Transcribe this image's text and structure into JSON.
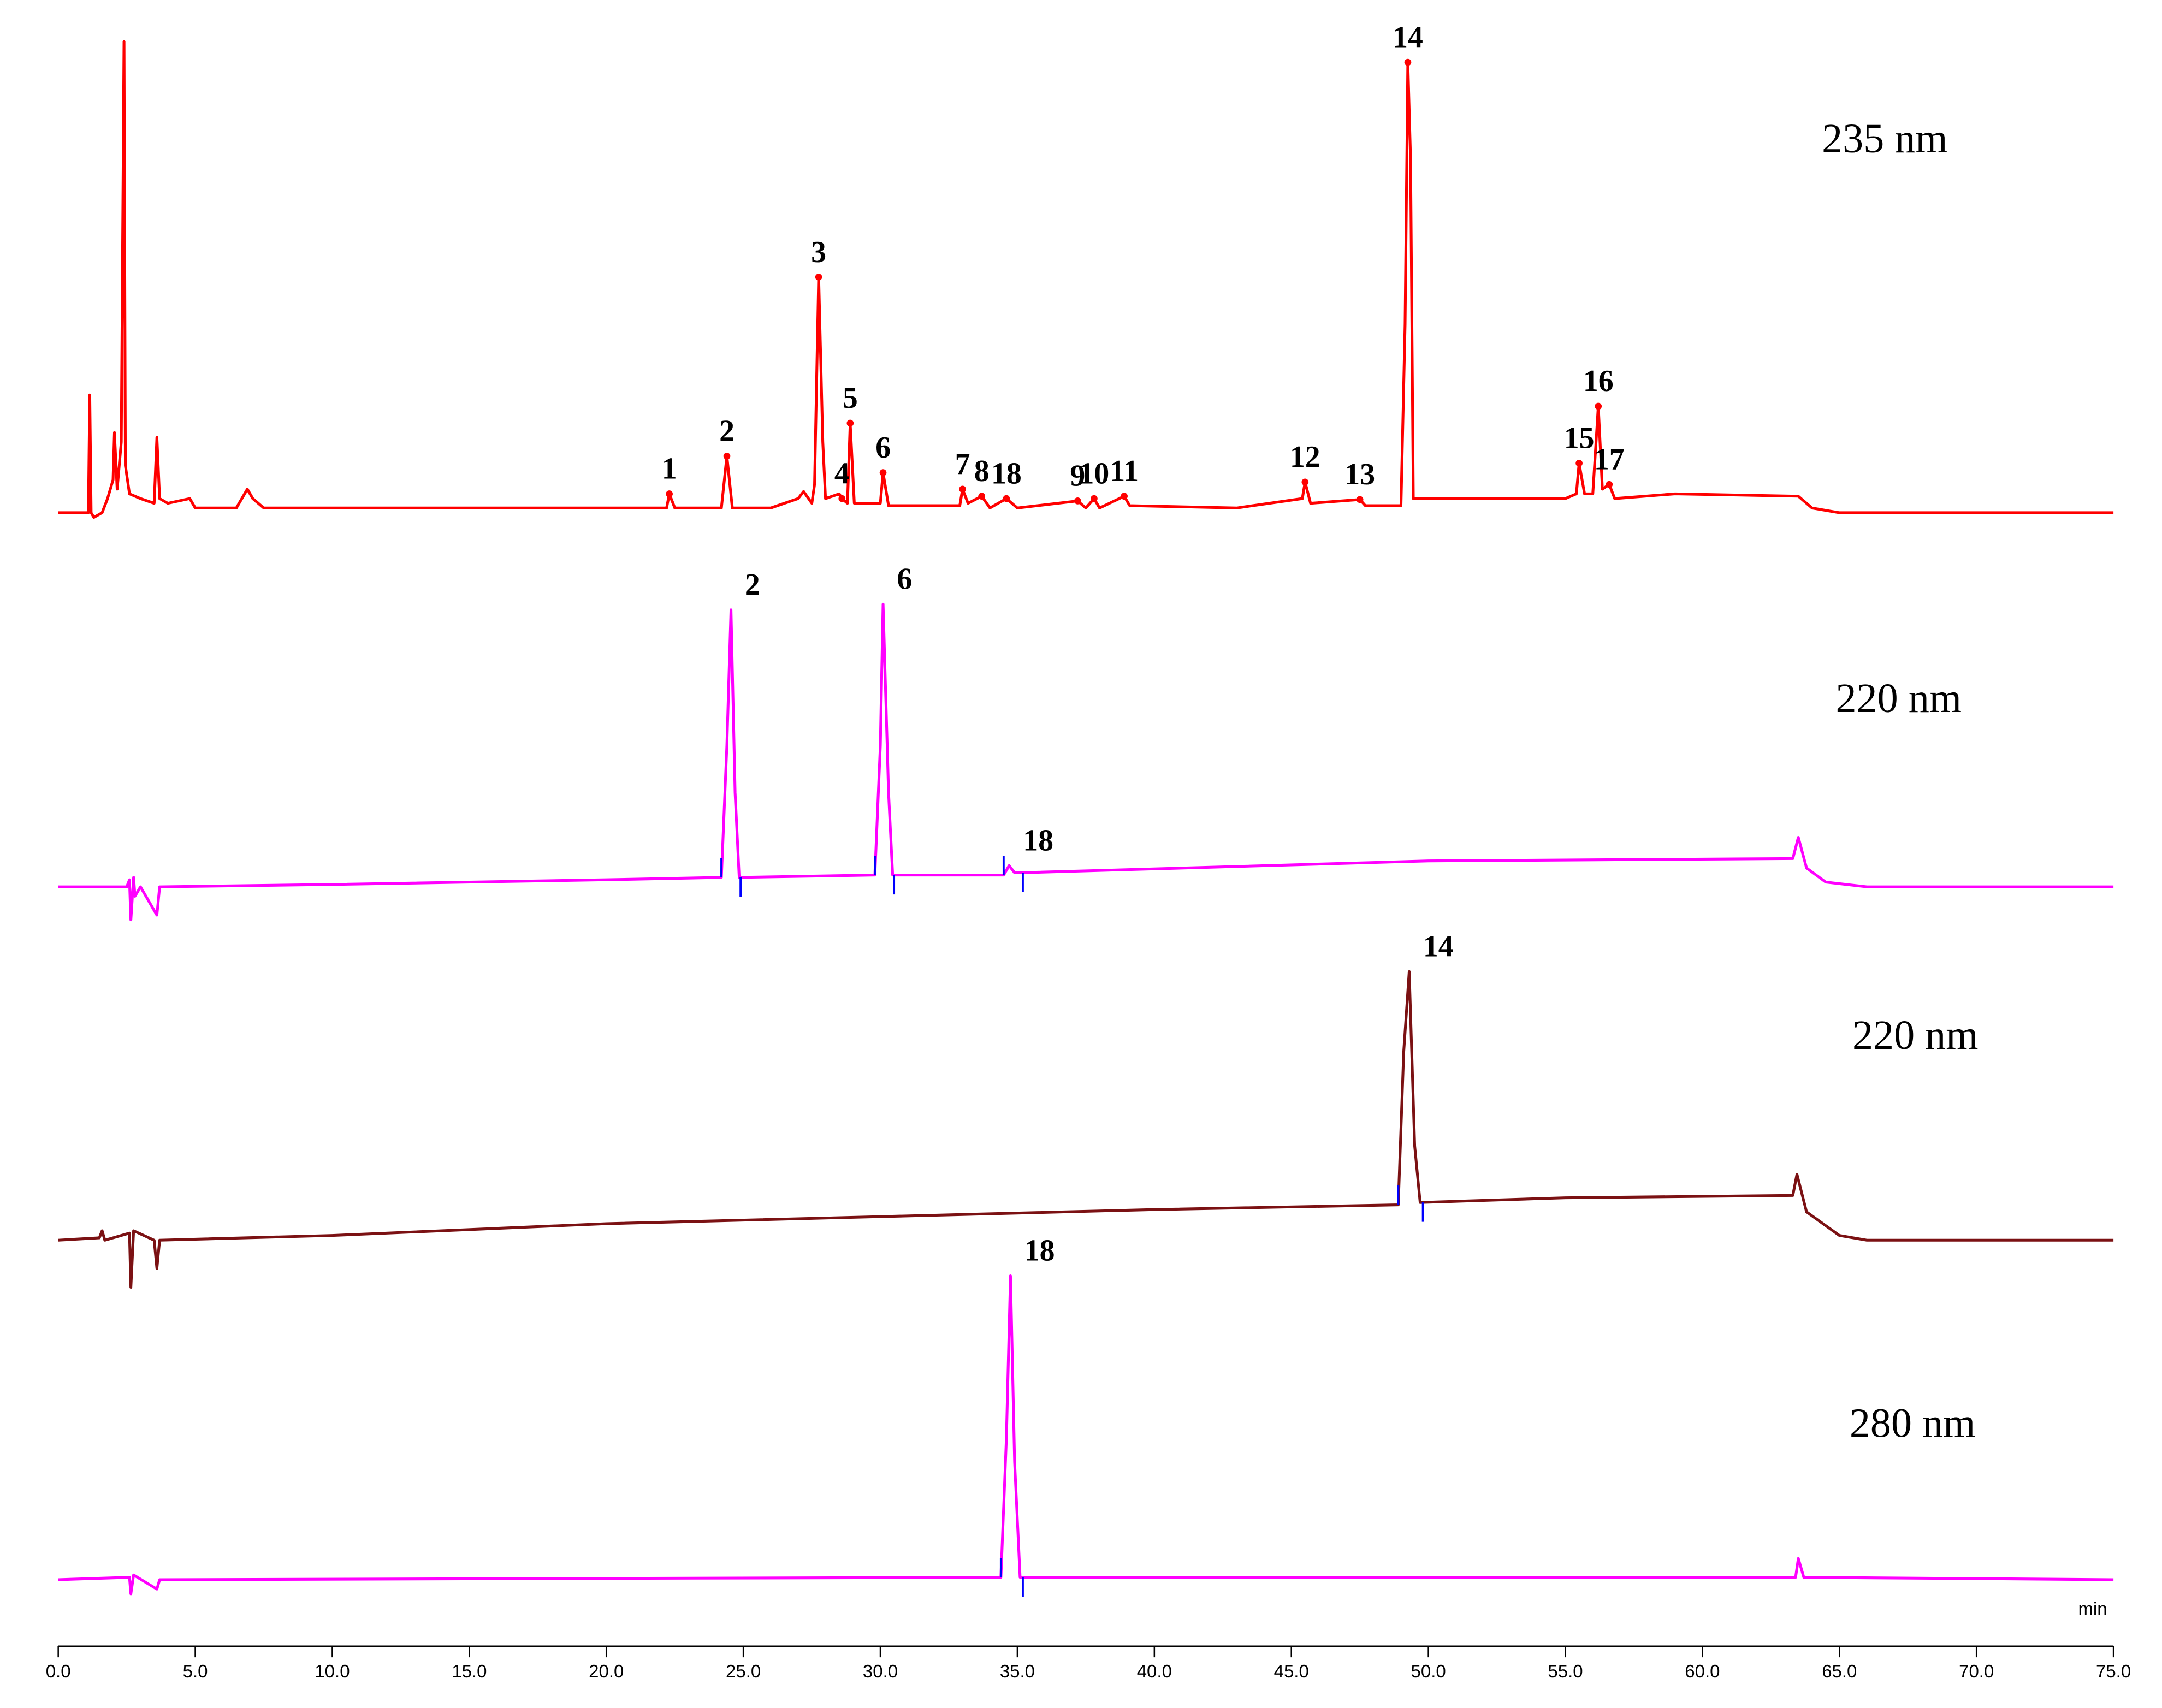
{
  "chart_data": {
    "type": "line",
    "x_label": "min",
    "xlim": [
      0,
      75
    ],
    "xticks": [
      {
        "value": 0,
        "label": "0.0"
      },
      {
        "value": 5,
        "label": "5.0"
      },
      {
        "value": 10,
        "label": "10.0"
      },
      {
        "value": 15,
        "label": "15.0"
      },
      {
        "value": 20,
        "label": "20.0"
      },
      {
        "value": 25,
        "label": "25.0"
      },
      {
        "value": 30,
        "label": "30.0"
      },
      {
        "value": 35,
        "label": "35.0"
      },
      {
        "value": 40,
        "label": "40.0"
      },
      {
        "value": 45,
        "label": "45.0"
      },
      {
        "value": 50,
        "label": "50.0"
      },
      {
        "value": 55,
        "label": "55.0"
      },
      {
        "value": 60,
        "label": "60.0"
      },
      {
        "value": 65,
        "label": "65.0"
      },
      {
        "value": 70,
        "label": "70.0"
      },
      {
        "value": 75,
        "label": "75.0"
      }
    ],
    "series": [
      {
        "name": "235 nm",
        "color": "#ff0000",
        "x": [
          0,
          1.0,
          1.1,
          1.15,
          1.2,
          1.3,
          1.6,
          1.8,
          2.0,
          2.05,
          2.15,
          2.3,
          2.4,
          2.45,
          2.6,
          3.0,
          3.5,
          3.6,
          3.7,
          4.0,
          4.8,
          5.0,
          6.5,
          6.9,
          7.1,
          7.5,
          12,
          20,
          22.2,
          22.3,
          22.5,
          24.2,
          24.4,
          24.6,
          26,
          27.0,
          27.2,
          27.5,
          27.6,
          27.75,
          27.9,
          28.0,
          28.5,
          28.6,
          28.8,
          28.9,
          29.05,
          30.0,
          30.1,
          30.3,
          32.9,
          33.0,
          33.2,
          33.7,
          34.0,
          34.6,
          35.0,
          37.2,
          37.5,
          37.8,
          38.0,
          38.9,
          39.1,
          43,
          45.4,
          45.5,
          45.7,
          47.5,
          47.7,
          49.0,
          49.15,
          49.25,
          49.35,
          49.45,
          55,
          55.4,
          55.5,
          55.7,
          56.0,
          56.2,
          56.35,
          56.6,
          56.8,
          59,
          63.5,
          64,
          65,
          75
        ],
        "values": [
          0,
          0,
          0,
          25,
          0,
          -1,
          0,
          3,
          7,
          17,
          5,
          15,
          100,
          10,
          4,
          3,
          2,
          16,
          3,
          2,
          3,
          1,
          1,
          5,
          3,
          1,
          1,
          1,
          1,
          4,
          1,
          1,
          12,
          1,
          1,
          3,
          4.5,
          2,
          6,
          50,
          15,
          3,
          4,
          3,
          2,
          19,
          2,
          2,
          8.5,
          1.5,
          1.5,
          5,
          2,
          3.5,
          1,
          3,
          1,
          2.5,
          1,
          3,
          1,
          3.5,
          1.5,
          1,
          3,
          6.5,
          2,
          2.8,
          1.5,
          1.5,
          40,
          95.6,
          75,
          3,
          3,
          4,
          10.5,
          4,
          4,
          22.6,
          5,
          6,
          3,
          4,
          3.5,
          1,
          0,
          0
        ],
        "annotations": [
          {
            "label": "1",
            "x": 22.3,
            "y": 4
          },
          {
            "label": "2",
            "x": 24.4,
            "y": 12
          },
          {
            "label": "3",
            "x": 27.75,
            "y": 50
          },
          {
            "label": "4",
            "x": 28.6,
            "y": 3
          },
          {
            "label": "5",
            "x": 28.9,
            "y": 19
          },
          {
            "label": "6",
            "x": 30.1,
            "y": 8.5
          },
          {
            "label": "7",
            "x": 33.0,
            "y": 5
          },
          {
            "label": "8",
            "x": 33.7,
            "y": 3.5
          },
          {
            "label": "18",
            "x": 34.6,
            "y": 3
          },
          {
            "label": "9",
            "x": 37.2,
            "y": 2.5
          },
          {
            "label": "10",
            "x": 37.8,
            "y": 3
          },
          {
            "label": "11",
            "x": 38.9,
            "y": 3.5
          },
          {
            "label": "12",
            "x": 45.5,
            "y": 6.5
          },
          {
            "label": "13",
            "x": 47.5,
            "y": 2.8
          },
          {
            "label": "14",
            "x": 49.25,
            "y": 95.6
          },
          {
            "label": "15",
            "x": 55.5,
            "y": 10.5
          },
          {
            "label": "16",
            "x": 56.2,
            "y": 22.6
          },
          {
            "label": "17",
            "x": 56.6,
            "y": 6
          }
        ]
      },
      {
        "name": "220 nm",
        "color": "#ff00ff",
        "x": [
          0,
          2.5,
          2.6,
          2.65,
          2.75,
          2.8,
          3.0,
          3.6,
          3.7,
          10,
          20,
          24.2,
          24.4,
          24.55,
          24.7,
          24.85,
          29.8,
          30.0,
          30.1,
          30.3,
          30.45,
          34.5,
          34.7,
          34.9,
          35.2,
          50,
          63.3,
          63.5,
          63.8,
          64.5,
          66,
          75
        ],
        "values": [
          0,
          0,
          1.5,
          -7,
          2,
          -2,
          0,
          -6,
          0,
          0.5,
          1.5,
          2,
          30,
          58.8,
          20,
          2,
          2.5,
          30,
          60,
          20,
          2.5,
          2.5,
          4.5,
          3,
          3,
          5.5,
          6,
          10.5,
          4,
          1,
          0,
          0
        ],
        "annotations": [
          {
            "label": "2",
            "x": 24.55,
            "y": 58.8
          },
          {
            "label": "6",
            "x": 30.1,
            "y": 60
          },
          {
            "label": "18",
            "x": 34.7,
            "y": 4.5
          }
        ],
        "integration_marks": [
          24.2,
          24.9,
          29.8,
          30.5,
          34.5,
          35.2
        ]
      },
      {
        "name": "220 nm",
        "color": "#7b1113",
        "x": [
          0,
          1.5,
          1.6,
          1.7,
          2.6,
          2.65,
          2.75,
          3.5,
          3.6,
          3.7,
          10,
          20,
          30,
          40,
          48.9,
          49.1,
          49.3,
          49.5,
          49.7,
          55,
          63.3,
          63.45,
          63.8,
          65,
          66,
          75
        ],
        "values": [
          0,
          0.5,
          2,
          0,
          1.5,
          -10,
          2,
          0,
          -6,
          0,
          1,
          3.5,
          5,
          6.5,
          7.5,
          40,
          57,
          20,
          8,
          9,
          9.5,
          14,
          6,
          1,
          0,
          0
        ],
        "annotations": [
          {
            "label": "14",
            "x": 49.3,
            "y": 57
          }
        ],
        "integration_marks": [
          48.9,
          49.8
        ]
      },
      {
        "name": "280 nm",
        "color": "#ff00ff",
        "x": [
          0,
          2.6,
          2.65,
          2.75,
          3.6,
          3.7,
          34.4,
          34.6,
          34.75,
          34.9,
          35.1,
          63.4,
          63.5,
          63.7,
          75
        ],
        "values": [
          0,
          0.5,
          -3,
          1,
          -2,
          0,
          0.5,
          30,
          64.5,
          25,
          0.5,
          0.5,
          4.5,
          0.5,
          0
        ],
        "annotations": [
          {
            "label": "18",
            "x": 34.75,
            "y": 64.5
          }
        ],
        "integration_marks": [
          34.4,
          35.2
        ]
      }
    ]
  }
}
